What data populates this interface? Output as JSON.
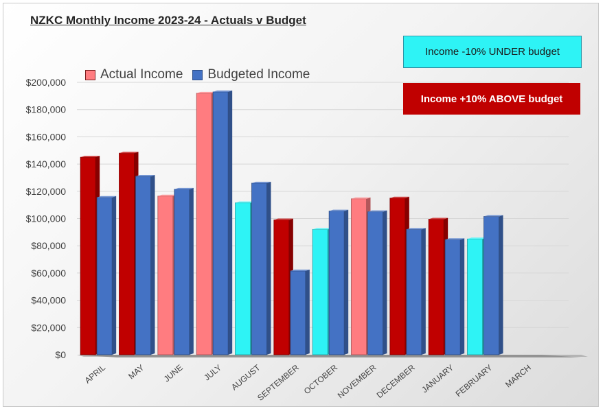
{
  "chart_data": {
    "type": "bar",
    "title": "NZKC Monthly Income 2023-24 - Actuals v Budget",
    "categories": [
      "APRIL",
      "MAY",
      "JUNE",
      "JULY",
      "AUGUST",
      "SEPTEMBER",
      "OCTOBER",
      "NOVEMBER",
      "DECEMBER",
      "JANUARY",
      "FEBRUARY",
      "MARCH"
    ],
    "series": [
      {
        "name": "Actual Income",
        "values": [
          145000,
          148000,
          116500,
          192000,
          111500,
          99000,
          92000,
          114500,
          115000,
          99500,
          85000,
          null
        ]
      },
      {
        "name": "Budgeted Income",
        "values": [
          115500,
          131000,
          121500,
          193000,
          126000,
          61500,
          105500,
          105000,
          92000,
          84500,
          101500,
          null
        ]
      }
    ],
    "actual_colors": [
      "#c00000",
      "#c00000",
      "#ff7c80",
      "#ff7c80",
      "#2ef3f5",
      "#c00000",
      "#2ef3f5",
      "#ff7c80",
      "#c00000",
      "#c00000",
      "#2ef3f5",
      null
    ],
    "budget_color": "#4472c4",
    "ylim": [
      0,
      200000
    ],
    "yticks": [
      0,
      20000,
      40000,
      60000,
      80000,
      100000,
      120000,
      140000,
      160000,
      180000,
      200000
    ],
    "ytick_labels": [
      "$0",
      "$20,000",
      "$40,000",
      "$60,000",
      "$80,000",
      "$100,000",
      "$120,000",
      "$140,000",
      "$160,000",
      "$180,000",
      "$200,000"
    ],
    "legend_position": "top-left",
    "grid": true,
    "legend": {
      "actual_label": "Actual Income",
      "budget_label": "Budgeted Income",
      "actual_swatch": "#ff7c80",
      "budget_swatch": "#4472c4"
    },
    "annotations": {
      "under_label": "Income -10% UNDER budget",
      "under_color": "#2ef3f5",
      "above_label": "Income +10% ABOVE budget",
      "above_color": "#c00000"
    }
  }
}
